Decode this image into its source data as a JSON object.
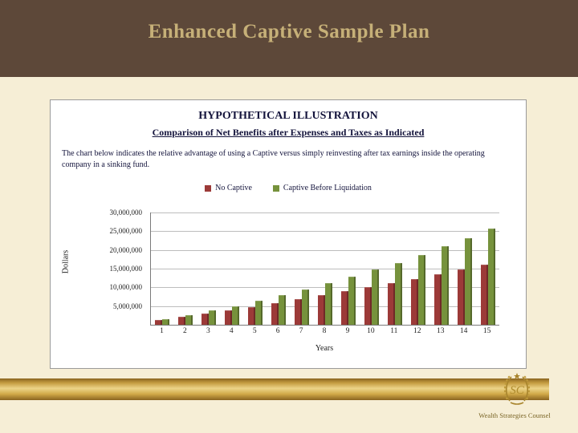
{
  "slide": {
    "title": "Enhanced Captive Sample Plan",
    "footer_text": "Wealth Strategies Counsel",
    "logo_monogram": "SC"
  },
  "panel": {
    "title": "HYPOTHETICAL ILLUSTRATION",
    "subtitle": "Comparison of Net Benefits after Expenses and Taxes as Indicated",
    "description": "The chart below indicates the relative advantage of using a Captive versus simply reinvesting after tax earnings inside the operating company in a sinking fund."
  },
  "chart_data": {
    "type": "bar",
    "title": "",
    "xlabel": "Years",
    "ylabel": "Dollars",
    "categories": [
      "1",
      "2",
      "3",
      "4",
      "5",
      "6",
      "7",
      "8",
      "9",
      "10",
      "11",
      "12",
      "13",
      "14",
      "15"
    ],
    "series": [
      {
        "name": "No Captive",
        "color": "#9c3a38",
        "values": [
          1200000,
          2100000,
          3000000,
          3900000,
          4800000,
          5800000,
          6800000,
          7900000,
          9000000,
          10100000,
          11200000,
          12300000,
          13500000,
          14700000,
          16000000
        ]
      },
      {
        "name": "Captive Before Liquidation",
        "color": "#76923c",
        "values": [
          1500000,
          2600000,
          3800000,
          5000000,
          6400000,
          7900000,
          9400000,
          11100000,
          12900000,
          14700000,
          16600000,
          18700000,
          20900000,
          23200000,
          25800000
        ]
      }
    ],
    "ylim": [
      0,
      30000000
    ],
    "ytick_interval": 5000000,
    "ytick_labels": [
      "5,000,000",
      "10,000,000",
      "15,000,000",
      "20,000,000",
      "25,000,000",
      "30,000,000"
    ],
    "grid": true,
    "legend_position": "top"
  }
}
